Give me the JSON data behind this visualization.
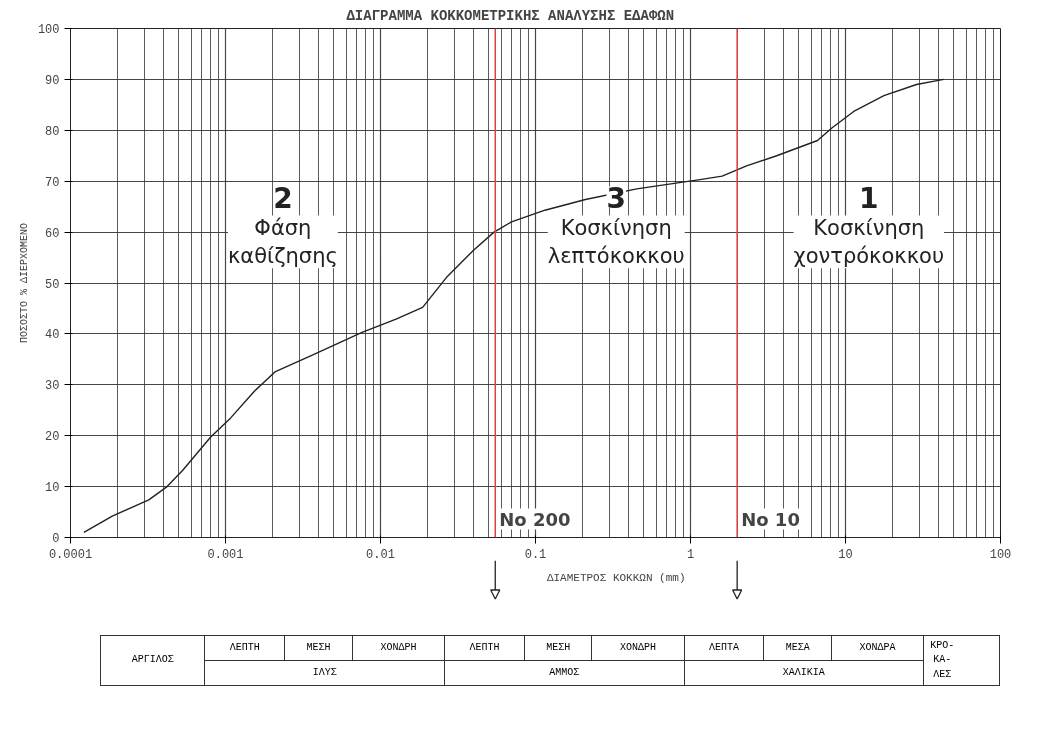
{
  "chart_data": {
    "type": "line",
    "title": "ΔΙΑΓΡΑΜΜΑ   ΚΟΚΚΟΜΕΤΡΙΚΗΣ   ΑΝΑΛΥΣΗΣ   ΕΔΑΦΩΝ",
    "xlabel": "ΔΙΑΜΕΤΡΟΣ ΚΟΚΚΩΝ (mm)",
    "ylabel": "ΠΟΣΟΣΤΟ % ΔΙΕΡΧΟΜΕΝΟ",
    "log": "x",
    "grid": true,
    "marker": "none",
    "line_style": "solid",
    "xlim": [
      0.0001,
      100
    ],
    "xticks": [
      0.0001,
      0.001,
      0.01,
      0.1,
      1,
      10,
      100
    ],
    "ylim": [
      0,
      100
    ],
    "yticks": [
      0,
      10,
      20,
      30,
      40,
      50,
      60,
      70,
      80,
      90,
      100
    ],
    "series": [
      {
        "color": "#222222",
        "x": [
          0.000122,
          0.000186,
          0.00032,
          0.00042,
          0.00053,
          0.0008,
          0.00108,
          0.00153,
          0.0021,
          0.0036,
          0.0076,
          0.0126,
          0.0187,
          0.027,
          0.04,
          0.054,
          0.07,
          0.115,
          0.21,
          0.45,
          1.15,
          1.6,
          2.3,
          3.6,
          6.6,
          8.2,
          11.3,
          17.7,
          28.7,
          43
        ],
        "values": [
          1,
          4.2,
          7.4,
          10,
          13.2,
          19.7,
          23.5,
          28.7,
          32.6,
          35.8,
          40.3,
          42.9,
          45.2,
          51.3,
          56.5,
          60,
          62,
          64.3,
          66.4,
          68.5,
          70.3,
          71,
          73,
          75,
          78,
          80.5,
          83.7,
          86.8,
          89,
          90
        ]
      }
    ],
    "ref_lines": [
      {
        "axis": "x",
        "value": 0.055,
        "label": "No 200",
        "color": "#e04040"
      },
      {
        "axis": "x",
        "value": 2,
        "label": "No 10",
        "color": "#e04040"
      }
    ],
    "annotations": [
      "2",
      "Φάση καθίζησης",
      "3",
      "Κοσκίνηση λεπτόκοκκου",
      "1",
      "Κοσκίνηση χοντρόκοκκου",
      "ΑΡΓΙΛΟΣ",
      "ΛΕΠΤΗ",
      "ΜΕΣΗ",
      "ΧΟΝΔΡΗ",
      "ΛΕΠΤΗ",
      "ΜΕΣΗ",
      "ΧΟΝΔΡΗ",
      "ΛΕΠΤΑ",
      "ΜΕΣΑ",
      "ΧΟΝΔΡΑ",
      "ΚΡΟ-ΚΑ-ΛΕΣ",
      "ΙΛΥΣ",
      "ΑΜΜΟΣ",
      "ΧΑΛΙΚΙΑ"
    ]
  }
}
